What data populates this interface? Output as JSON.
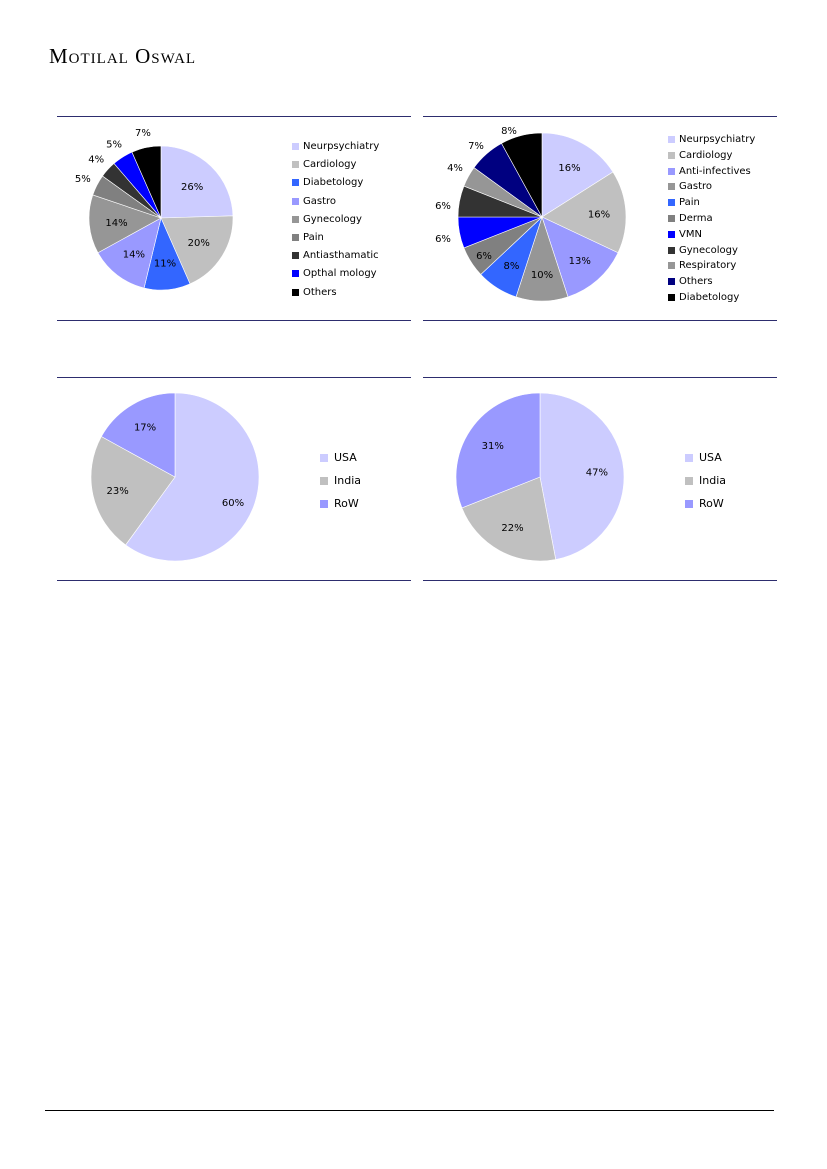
{
  "brand": {
    "name": "Motilal Oswal"
  },
  "chart_data": [
    {
      "type": "pie",
      "categories": [
        "Neurpsychiatry",
        "Cardiology",
        "Diabetology",
        "Gastro",
        "Gynecology",
        "Pain",
        "Antiasthamatic",
        "Opthalmology",
        "Others"
      ],
      "values": [
        26,
        20,
        11,
        14,
        14,
        5,
        4,
        5,
        7
      ],
      "data_labels": [
        "26%",
        "20%",
        "11%",
        "14%",
        "14%",
        "5%",
        "4%",
        "5%",
        "7%"
      ],
      "colors": [
        "#ccccff",
        "#c0c0c0",
        "#3366ff",
        "#9999ff",
        "#969696",
        "#808080",
        "#333333",
        "#0000ff",
        "#000000"
      ],
      "legend_labels": [
        "Neurpsychiatry",
        "Cardiology",
        "Diabetology",
        "Gastro",
        "Gynecology",
        "Pain",
        "Antiasthamatic",
        "Opthal mology",
        "Others"
      ],
      "legend": "right"
    },
    {
      "type": "pie",
      "categories": [
        "Neurpsychiatry",
        "Cardiology",
        "Anti-infectives",
        "Gastro",
        "Pain",
        "Derma",
        "VMN",
        "Gynecology",
        "Respiratory",
        "Others",
        "Diabetology"
      ],
      "values": [
        16,
        16,
        13,
        10,
        8,
        6,
        6,
        6,
        4,
        7,
        8
      ],
      "data_labels": [
        "16%",
        "16%",
        "13%",
        "10%",
        "8%",
        "6%",
        "6%",
        "6%",
        "4%",
        "7%",
        "8%"
      ],
      "colors": [
        "#ccccff",
        "#c0c0c0",
        "#9999ff",
        "#969696",
        "#3366ff",
        "#808080",
        "#0000ff",
        "#333333",
        "#969696",
        "#000080",
        "#000000"
      ],
      "legend_labels": [
        "Neurpsychiatry",
        "Cardiology",
        "Anti-infectives",
        "Gastro",
        "Pain",
        "Derma",
        "VMN",
        "Gynecology",
        "Respiratory",
        "Others",
        "Diabetology"
      ],
      "legend": "right"
    },
    {
      "type": "pie",
      "categories": [
        "USA",
        "India",
        "RoW"
      ],
      "values": [
        60,
        23,
        17
      ],
      "data_labels": [
        "60%",
        "23%",
        "17%"
      ],
      "colors": [
        "#ccccff",
        "#c0c0c0",
        "#9999ff"
      ],
      "legend_labels": [
        "USA",
        "India",
        "RoW"
      ],
      "legend": "right"
    },
    {
      "type": "pie",
      "categories": [
        "USA",
        "India",
        "RoW"
      ],
      "values": [
        47,
        22,
        31
      ],
      "data_labels": [
        "47%",
        "22%",
        "31%"
      ],
      "colors": [
        "#ccccff",
        "#c0c0c0",
        "#9999ff"
      ],
      "legend_labels": [
        "USA",
        "India",
        "RoW"
      ],
      "legend": "right"
    }
  ]
}
